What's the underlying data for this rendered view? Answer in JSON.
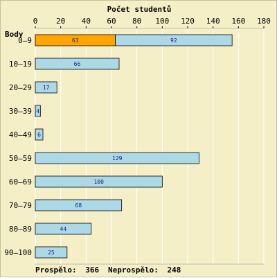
{
  "chart_data": {
    "type": "bar",
    "orientation": "horizontal",
    "stacked": true,
    "title": "Počet studentů",
    "ylabel": "Body",
    "categories": [
      "0–9",
      "10–19",
      "20–29",
      "30–39",
      "40–49",
      "50–59",
      "60–69",
      "70–79",
      "80–89",
      "90–100"
    ],
    "series": [
      {
        "values": [
          63,
          0,
          0,
          0,
          0,
          0,
          0,
          0,
          0,
          0
        ],
        "color": "#ffa500"
      },
      {
        "values": [
          92,
          66,
          17,
          4,
          6,
          129,
          100,
          68,
          44,
          25
        ],
        "color": "#add8e6"
      }
    ],
    "xlim": [
      0,
      180
    ],
    "xticks": [
      0,
      20,
      40,
      60,
      80,
      100,
      120,
      140,
      160,
      180
    ],
    "grid": true,
    "gridline_color": "#ffffff"
  },
  "footer": {
    "passed_label": "Prospělo:",
    "passed_value": "366",
    "failed_label": "Neprospělo:",
    "failed_value": "248"
  }
}
